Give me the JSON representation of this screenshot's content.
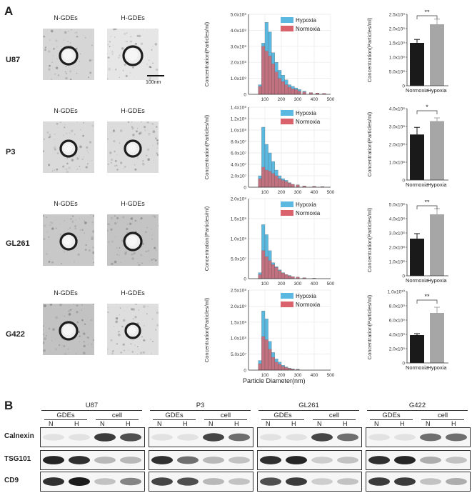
{
  "panel_a_label": "A",
  "panel_b_label": "B",
  "em": {
    "col_labels": [
      "N-GDEs",
      "H-GDEs"
    ],
    "row_labels": [
      "U87",
      "P3",
      "GL261",
      "G422"
    ],
    "scale_bar": "100nm"
  },
  "histograms": {
    "ylabel": "Concentration(Particles/ml)",
    "xlabel": "Particle Diameter(nm)",
    "legend": [
      "Hypoxia",
      "Normoxia"
    ],
    "colors": {
      "hypoxia": "#5bb8e0",
      "normoxia": "#d9626c"
    }
  },
  "bars": {
    "ylabel": "Concentration(Particles/ml)",
    "categories": [
      "Normoxia",
      "Hypoxia"
    ],
    "colors": {
      "normoxia": "#1a1a1a",
      "hypoxia": "#a6a6a6"
    }
  },
  "chart_data": [
    {
      "type": "bar",
      "panel": "U87 size distribution",
      "xlim": [
        0,
        500
      ],
      "yticks": [
        "0",
        "1.0x10⁸",
        "2.0x10⁸",
        "3.0x10⁸",
        "4.0x10⁸",
        "5.0x10⁸"
      ],
      "xticks": [
        "100",
        "200",
        "300",
        "400",
        "500"
      ],
      "ymax": 500000000.0,
      "series": [
        {
          "name": "Hypoxia",
          "values": [
            [
              70,
              60000000.0
            ],
            [
              90,
              320000000.0
            ],
            [
              110,
              450000000.0
            ],
            [
              130,
              390000000.0
            ],
            [
              150,
              260000000.0
            ],
            [
              170,
              200000000.0
            ],
            [
              190,
              150000000.0
            ],
            [
              210,
              120000000.0
            ],
            [
              230,
              90000000.0
            ],
            [
              250,
              60000000.0
            ],
            [
              270,
              50000000.0
            ],
            [
              290,
              40000000.0
            ],
            [
              310,
              30000000.0
            ],
            [
              340,
              20000000.0
            ],
            [
              380,
              10000000.0
            ],
            [
              420,
              8000000.0
            ],
            [
              460,
              5000000.0
            ]
          ]
        },
        {
          "name": "Normoxia",
          "values": [
            [
              70,
              50000000.0
            ],
            [
              90,
              300000000.0
            ],
            [
              110,
              270000000.0
            ],
            [
              130,
              240000000.0
            ],
            [
              150,
              190000000.0
            ],
            [
              170,
              140000000.0
            ],
            [
              190,
              100000000.0
            ],
            [
              210,
              80000000.0
            ],
            [
              230,
              60000000.0
            ],
            [
              250,
              45000000.0
            ],
            [
              270,
              35000000.0
            ],
            [
              290,
              30000000.0
            ],
            [
              310,
              20000000.0
            ],
            [
              340,
              15000000.0
            ],
            [
              380,
              10000000.0
            ],
            [
              420,
              8000000.0
            ],
            [
              460,
              6000000.0
            ]
          ]
        }
      ]
    },
    {
      "type": "bar",
      "panel": "P3 size distribution",
      "xlim": [
        0,
        500
      ],
      "yticks": [
        "0",
        "2.0x10⁷",
        "4.0x10⁷",
        "6.0x10⁷",
        "8.0x10⁷",
        "1.0x10⁸",
        "1.2x10⁸",
        "1.4x10⁸"
      ],
      "xticks": [
        "100",
        "200",
        "300",
        "400",
        "500"
      ],
      "ymax": 140000000.0,
      "series": [
        {
          "name": "Hypoxia",
          "values": [
            [
              70,
              20000000.0
            ],
            [
              90,
              105000000.0
            ],
            [
              110,
              75000000.0
            ],
            [
              130,
              60000000.0
            ],
            [
              150,
              45000000.0
            ],
            [
              170,
              30000000.0
            ],
            [
              190,
              20000000.0
            ],
            [
              210,
              15000000.0
            ],
            [
              230,
              12000000.0
            ],
            [
              250,
              8000000.0
            ],
            [
              270,
              5000000.0
            ],
            [
              300,
              4000000.0
            ],
            [
              340,
              2000000.0
            ],
            [
              400,
              1500000.0
            ],
            [
              450,
              1000000.0
            ]
          ]
        },
        {
          "name": "Normoxia",
          "values": [
            [
              70,
              15000000.0
            ],
            [
              90,
              35000000.0
            ],
            [
              110,
              30000000.0
            ],
            [
              130,
              28000000.0
            ],
            [
              150,
              24000000.0
            ],
            [
              170,
              20000000.0
            ],
            [
              190,
              15000000.0
            ],
            [
              210,
              12000000.0
            ],
            [
              230,
              10000000.0
            ],
            [
              250,
              7000000.0
            ],
            [
              270,
              5000000.0
            ],
            [
              300,
              4000000.0
            ],
            [
              340,
              2000000.0
            ],
            [
              400,
              1500000.0
            ],
            [
              450,
              1000000.0
            ]
          ]
        }
      ]
    },
    {
      "type": "bar",
      "panel": "GL261 size distribution",
      "xlim": [
        0,
        500
      ],
      "yticks": [
        "0",
        "5.0x10⁷",
        "1.0x10⁸",
        "1.5x10⁸",
        "2.0x10⁸"
      ],
      "xticks": [
        "100",
        "200",
        "300",
        "400",
        "500"
      ],
      "ymax": 200000000.0,
      "series": [
        {
          "name": "Hypoxia",
          "values": [
            [
              70,
              15000000.0
            ],
            [
              90,
              135000000.0
            ],
            [
              110,
              110000000.0
            ],
            [
              130,
              70000000.0
            ],
            [
              150,
              40000000.0
            ],
            [
              170,
              30000000.0
            ],
            [
              190,
              22000000.0
            ],
            [
              210,
              15000000.0
            ],
            [
              230,
              10000000.0
            ],
            [
              250,
              8000000.0
            ],
            [
              270,
              5000000.0
            ],
            [
              300,
              4000000.0
            ],
            [
              340,
              2000000.0
            ],
            [
              400,
              1000000.0
            ]
          ]
        },
        {
          "name": "Normoxia",
          "values": [
            [
              70,
              10000000.0
            ],
            [
              90,
              70000000.0
            ],
            [
              110,
              55000000.0
            ],
            [
              130,
              45000000.0
            ],
            [
              150,
              35000000.0
            ],
            [
              170,
              28000000.0
            ],
            [
              190,
              20000000.0
            ],
            [
              210,
              14000000.0
            ],
            [
              230,
              10000000.0
            ],
            [
              250,
              7000000.0
            ],
            [
              270,
              5000000.0
            ],
            [
              300,
              4000000.0
            ],
            [
              340,
              2000000.0
            ],
            [
              400,
              1000000.0
            ]
          ]
        }
      ]
    },
    {
      "type": "bar",
      "panel": "G422 size distribution",
      "xlim": [
        0,
        500
      ],
      "yticks": [
        "0",
        "5.0x10⁷",
        "1.0x10⁸",
        "1.5x10⁸",
        "2.0x10⁸",
        "2.5x10⁸"
      ],
      "xticks": [
        "100",
        "200",
        "300",
        "400",
        "500"
      ],
      "ymax": 250000000.0,
      "series": [
        {
          "name": "Hypoxia",
          "values": [
            [
              70,
              30000000.0
            ],
            [
              90,
              185000000.0
            ],
            [
              110,
              160000000.0
            ],
            [
              130,
              90000000.0
            ],
            [
              150,
              55000000.0
            ],
            [
              170,
              35000000.0
            ],
            [
              190,
              25000000.0
            ],
            [
              210,
              15000000.0
            ],
            [
              230,
              10000000.0
            ],
            [
              250,
              6000000.0
            ],
            [
              270,
              4000000.0
            ],
            [
              300,
              3000000.0
            ]
          ]
        },
        {
          "name": "Normoxia",
          "values": [
            [
              70,
              20000000.0
            ],
            [
              90,
              105000000.0
            ],
            [
              110,
              95000000.0
            ],
            [
              130,
              65000000.0
            ],
            [
              150,
              40000000.0
            ],
            [
              170,
              25000000.0
            ],
            [
              190,
              18000000.0
            ],
            [
              210,
              12000000.0
            ],
            [
              230,
              8000000.0
            ],
            [
              250,
              5000000.0
            ],
            [
              270,
              3000000.0
            ],
            [
              300,
              2000000.0
            ]
          ]
        }
      ]
    },
    {
      "type": "bar",
      "panel": "U87 concentration",
      "categories": [
        "Normoxia",
        "Hypoxia"
      ],
      "values": [
        1500000000.0,
        2150000000.0
      ],
      "errors": [
        120000000.0,
        180000000.0
      ],
      "ymax": 2500000000.0,
      "yticks": [
        "0",
        "5.0x10⁸",
        "1.0x10⁹",
        "1.5x10⁹",
        "2.0x10⁹",
        "2.5x10⁹"
      ],
      "significance": "**"
    },
    {
      "type": "bar",
      "panel": "P3 concentration",
      "categories": [
        "Normoxia",
        "Hypoxia"
      ],
      "values": [
        255000000.0,
        330000000.0
      ],
      "errors": [
        40000000.0,
        18000000.0
      ],
      "ymax": 400000000.0,
      "yticks": [
        "0",
        "1.0x10⁸",
        "2.0x10⁸",
        "3.0x10⁸",
        "4.0x10⁸"
      ],
      "significance": "*"
    },
    {
      "type": "bar",
      "panel": "GL261 concentration",
      "categories": [
        "Normoxia",
        "Hypoxia"
      ],
      "values": [
        260000000.0,
        430000000.0
      ],
      "errors": [
        35000000.0,
        40000000.0
      ],
      "ymax": 500000000.0,
      "yticks": [
        "0",
        "1.0x10⁸",
        "2.0x10⁸",
        "3.0x10⁸",
        "4.0x10⁸",
        "5.0x10⁸"
      ],
      "significance": "**"
    },
    {
      "type": "bar",
      "panel": "G422 concentration",
      "categories": [
        "Normoxia",
        "Hypoxia"
      ],
      "values": [
        3900000000.0,
        7000000000.0
      ],
      "errors": [
        200000000.0,
        800000000.0
      ],
      "ymax": 10000000000.0,
      "yticks": [
        "0",
        "2.0x10⁹",
        "4.0x10⁹",
        "6.0x10⁹",
        "8.0x10⁹",
        "1.0x10¹⁰"
      ],
      "significance": "**"
    }
  ],
  "western": {
    "cell_lines": [
      "U87",
      "P3",
      "GL261",
      "G422"
    ],
    "groups": [
      "GDEs",
      "cell"
    ],
    "lanes": [
      "N",
      "H",
      "N",
      "H"
    ],
    "proteins": [
      "Calnexin",
      "TSG101",
      "CD9"
    ],
    "band_intensity": {
      "Calnexin": [
        [
          0.05,
          0.05,
          0.85,
          0.75
        ],
        [
          0.05,
          0.05,
          0.8,
          0.6
        ],
        [
          0.05,
          0.05,
          0.8,
          0.6
        ],
        [
          0.05,
          0.05,
          0.6,
          0.6
        ]
      ],
      "TSG101": [
        [
          0.95,
          0.9,
          0.25,
          0.25
        ],
        [
          0.9,
          0.6,
          0.25,
          0.2
        ],
        [
          0.9,
          0.95,
          0.15,
          0.2
        ],
        [
          0.9,
          0.95,
          0.3,
          0.2
        ]
      ],
      "CD9": [
        [
          0.9,
          1.0,
          0.2,
          0.5
        ],
        [
          0.8,
          0.75,
          0.25,
          0.2
        ],
        [
          0.75,
          0.85,
          0.15,
          0.2
        ],
        [
          0.85,
          0.85,
          0.2,
          0.3
        ]
      ]
    }
  }
}
